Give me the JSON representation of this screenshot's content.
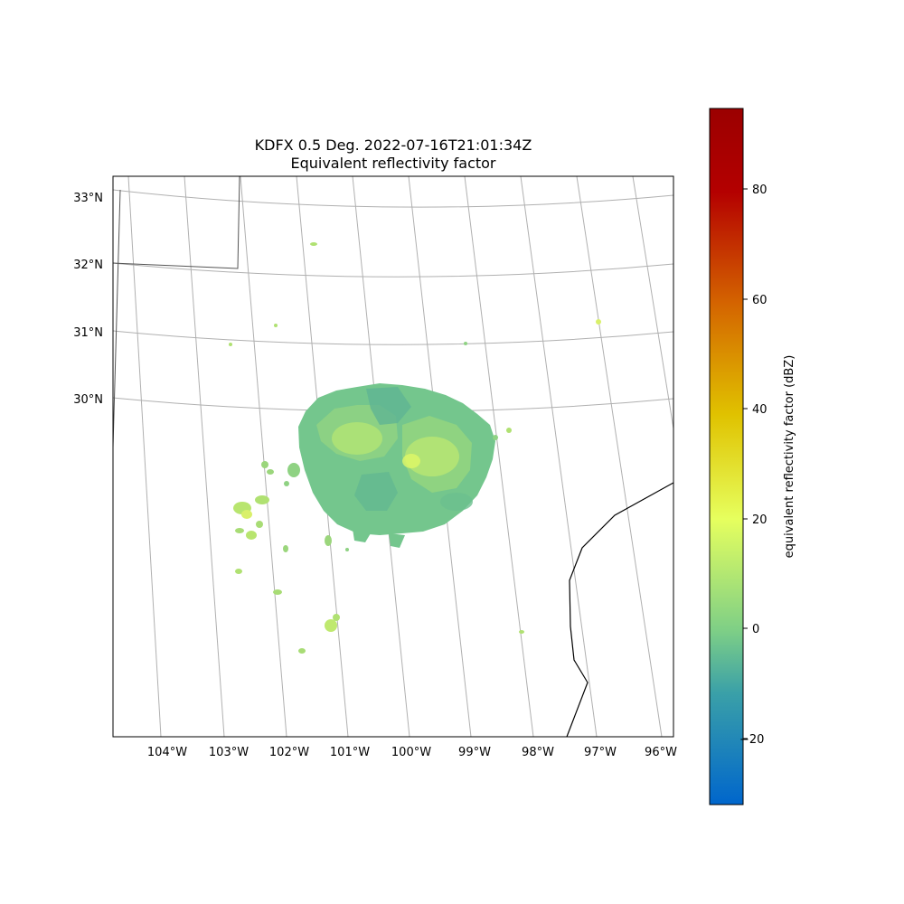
{
  "title": "KDFX 0.5 Deg. 2022-07-16T21:01:34Z",
  "subtitle": "Equivalent reflectivity factor",
  "map": {
    "lon_labels": [
      "104°W",
      "103°W",
      "102°W",
      "101°W",
      "100°W",
      "99°W",
      "98°W",
      "97°W",
      "96°W"
    ],
    "lat_labels": [
      "33°N",
      "32°N",
      "31°N",
      "30°N"
    ],
    "radar_site": "KDFX",
    "elevation": "0.5 Deg.",
    "field": "reflectivity"
  },
  "colorbar": {
    "label": "equivalent reflectivity factor (dBZ)",
    "ticks": [
      "80",
      "60",
      "40",
      "20",
      "0",
      "−20"
    ],
    "range": [
      -32,
      94.5
    ],
    "colormap": [
      "#0066cc",
      "#3aa0a8",
      "#7ecf86",
      "#e6ff5e",
      "#e0c200",
      "#d46400",
      "#b40000",
      "#9b0000"
    ]
  },
  "colors": {
    "grid": "#b0b0b0",
    "coastline": "#000000",
    "echo_light": "#79c98a",
    "echo_strong": "#d8f06a"
  }
}
